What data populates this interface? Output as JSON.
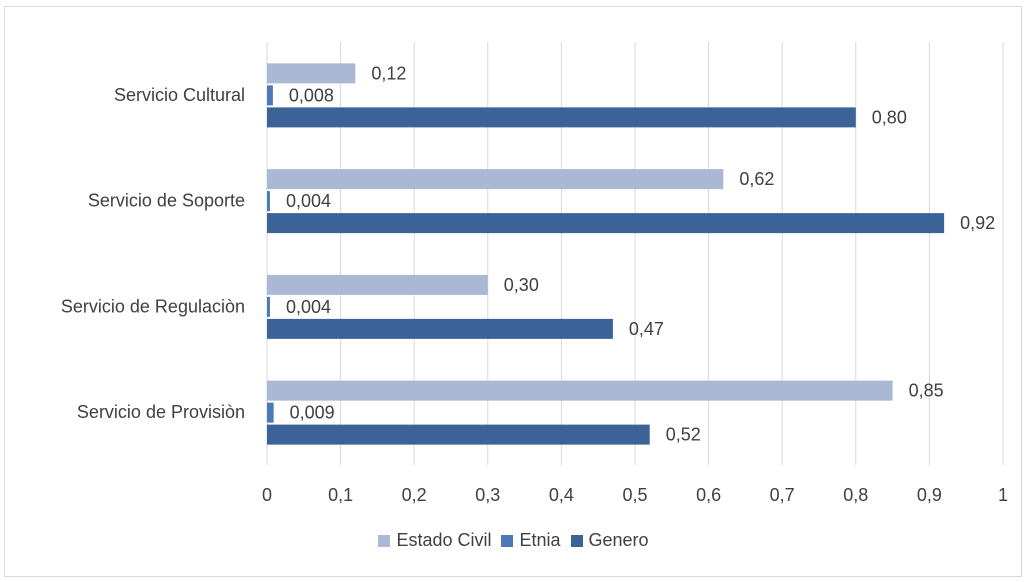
{
  "chart_data": {
    "type": "bar",
    "orientation": "horizontal",
    "categories": [
      "Servicio Cultural",
      "Servicio de Soporte",
      "Servicio de Regulaciòn",
      "Servicio de Provisiòn"
    ],
    "series": [
      {
        "name": "Estado Civil",
        "values": [
          0.12,
          0.62,
          0.3,
          0.85
        ],
        "labels": [
          "0,12",
          "0,62",
          "0,30",
          "0,85"
        ],
        "color": "#a9b8d5"
      },
      {
        "name": "Etnia",
        "values": [
          0.008,
          0.004,
          0.004,
          0.009
        ],
        "labels": [
          "0,008",
          "0,004",
          "0,004",
          "0,009"
        ],
        "color": "#4a78b8"
      },
      {
        "name": "Genero",
        "values": [
          0.8,
          0.92,
          0.47,
          0.52
        ],
        "labels": [
          "0,80",
          "0,92",
          "0,47",
          "0,52"
        ],
        "color": "#3b6397"
      }
    ],
    "xlim": [
      0,
      1
    ],
    "x_ticks": [
      0,
      0.1,
      0.2,
      0.3,
      0.4,
      0.5,
      0.6,
      0.7,
      0.8,
      0.9,
      1
    ],
    "x_tick_labels": [
      "0",
      "0,1",
      "0,2",
      "0,3",
      "0,4",
      "0,5",
      "0,6",
      "0,7",
      "0,8",
      "0,9",
      "1"
    ],
    "grid": "vertical",
    "legend_position": "bottom"
  }
}
